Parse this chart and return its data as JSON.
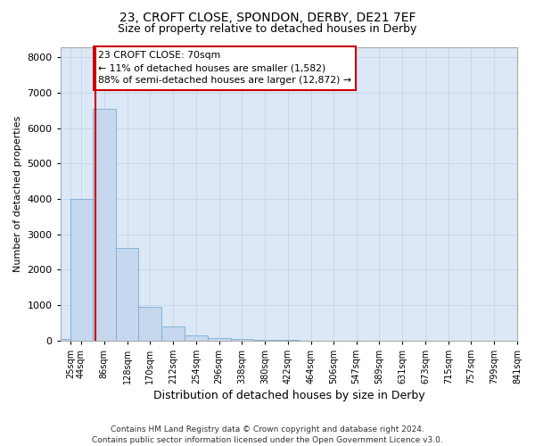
{
  "title1": "23, CROFT CLOSE, SPONDON, DERBY, DE21 7EF",
  "title2": "Size of property relative to detached houses in Derby",
  "xlabel": "Distribution of detached houses by size in Derby",
  "ylabel": "Number of detached properties",
  "bin_labels": [
    "25sqm",
    "44sqm",
    "86sqm",
    "128sqm",
    "170sqm",
    "212sqm",
    "254sqm",
    "296sqm",
    "338sqm",
    "380sqm",
    "422sqm",
    "464sqm",
    "506sqm",
    "547sqm",
    "589sqm",
    "631sqm",
    "673sqm",
    "715sqm",
    "757sqm",
    "799sqm",
    "841sqm"
  ],
  "bar_heights": [
    50,
    4000,
    6550,
    2600,
    950,
    380,
    130,
    60,
    30,
    10,
    5,
    0,
    0,
    0,
    0,
    0,
    0,
    0,
    0,
    0
  ],
  "bin_starts": [
    6,
    25,
    65,
    107,
    149,
    191,
    233,
    275,
    317,
    359,
    401,
    443,
    485,
    527,
    568,
    610,
    652,
    694,
    736,
    778
  ],
  "bin_ends": [
    25,
    65,
    107,
    149,
    191,
    233,
    275,
    317,
    359,
    401,
    443,
    485,
    527,
    568,
    610,
    652,
    694,
    736,
    778,
    841
  ],
  "bar_color": "#c5d8ee",
  "bar_edge_color": "#7aadd4",
  "property_size": 70,
  "property_line_color": "#cc0000",
  "annotation_text": "23 CROFT CLOSE: 70sqm\n← 11% of detached houses are smaller (1,582)\n88% of semi-detached houses are larger (12,872) →",
  "annotation_box_facecolor": "#ffffff",
  "annotation_box_edgecolor": "#cc0000",
  "ylim": [
    0,
    8300
  ],
  "yticks": [
    0,
    1000,
    2000,
    3000,
    4000,
    5000,
    6000,
    7000,
    8000
  ],
  "xlim_min": 6,
  "xlim_max": 841,
  "grid_color": "#c0d0e8",
  "background_color": "#dce8f5",
  "tick_positions": [
    25,
    44,
    86,
    128,
    170,
    212,
    254,
    296,
    338,
    380,
    422,
    464,
    506,
    547,
    589,
    631,
    673,
    715,
    757,
    799,
    841
  ],
  "footer1": "Contains HM Land Registry data © Crown copyright and database right 2024.",
  "footer2": "Contains public sector information licensed under the Open Government Licence v3.0.",
  "title1_fontsize": 10,
  "title2_fontsize": 9,
  "xlabel_fontsize": 9,
  "ylabel_fontsize": 8,
  "tick_fontsize": 7,
  "footer_fontsize": 6.5
}
